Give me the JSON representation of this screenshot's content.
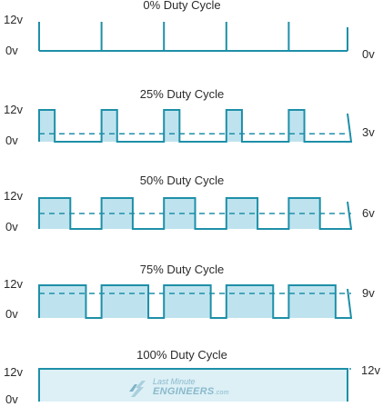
{
  "colors": {
    "wave": "#1e8fa8",
    "fill": "#bfe3ee",
    "dash": "#1e8fa8",
    "text": "#2b2b2b",
    "logo": "#8ab9cc"
  },
  "watermark": {
    "line1": "Last Minute",
    "line2": "ENGINEERS",
    "suffix": ".com",
    "icon": "lightning-logo-icon"
  },
  "panels": [
    {
      "title": "0% Duty Cycle",
      "high_label": "12v",
      "low_label": "0v",
      "avg_label": "0v",
      "duty": 0.0
    },
    {
      "title": "25% Duty Cycle",
      "high_label": "12v",
      "low_label": "0v",
      "avg_label": "3v",
      "duty": 0.25
    },
    {
      "title": "50% Duty Cycle",
      "high_label": "12v",
      "low_label": "0v",
      "avg_label": "6v",
      "duty": 0.5
    },
    {
      "title": "75% Duty Cycle",
      "high_label": "12v",
      "low_label": "0v",
      "avg_label": "9v",
      "duty": 0.75
    },
    {
      "title": "100% Duty Cycle",
      "high_label": "12v",
      "low_label": "0v",
      "avg_label": "12v",
      "duty": 1.0
    }
  ]
}
